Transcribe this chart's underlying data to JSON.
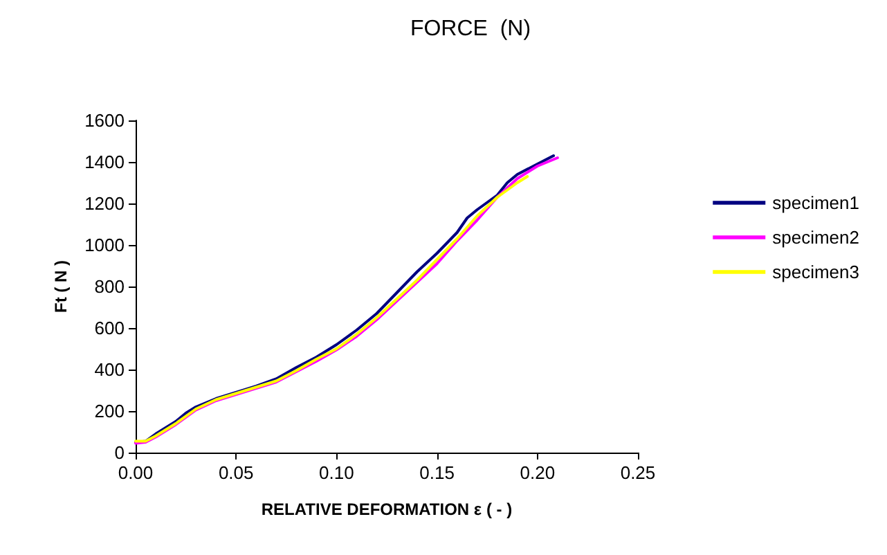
{
  "chart_data": {
    "type": "line",
    "title": "FORCE  (N)",
    "xlabel": "RELATIVE DEFORMATION ε ( - )",
    "ylabel": "Ft ( N )",
    "xlim": [
      0,
      0.25
    ],
    "xticks": [
      {
        "value": 0,
        "label": "0.00"
      },
      {
        "value": 0.05,
        "label": "0.05"
      },
      {
        "value": 0.1,
        "label": "0.10"
      },
      {
        "value": 0.15,
        "label": "0.15"
      },
      {
        "value": 0.2,
        "label": "0.20"
      },
      {
        "value": 0.25,
        "label": "0.25"
      }
    ],
    "ylim": [
      0,
      1600
    ],
    "yticks": [
      0,
      200,
      400,
      600,
      800,
      1000,
      1200,
      1400,
      1600
    ],
    "grid": false,
    "legend": "right",
    "marker": "none",
    "line_style": "solid",
    "series": [
      {
        "name": "specimen1",
        "color": "#000080",
        "x": [
          0,
          0.005,
          0.01,
          0.02,
          0.025,
          0.03,
          0.04,
          0.05,
          0.06,
          0.07,
          0.08,
          0.09,
          0.1,
          0.11,
          0.12,
          0.13,
          0.14,
          0.15,
          0.16,
          0.165,
          0.17,
          0.18,
          0.185,
          0.19,
          0.2,
          0.208
        ],
        "values": [
          50,
          55,
          90,
          150,
          190,
          220,
          260,
          290,
          320,
          355,
          410,
          460,
          520,
          590,
          670,
          770,
          870,
          960,
          1060,
          1130,
          1170,
          1240,
          1300,
          1340,
          1390,
          1430
        ]
      },
      {
        "name": "specimen2",
        "color": "#ff00ff",
        "x": [
          0,
          0.005,
          0.01,
          0.02,
          0.03,
          0.04,
          0.05,
          0.06,
          0.07,
          0.08,
          0.09,
          0.1,
          0.11,
          0.12,
          0.13,
          0.14,
          0.15,
          0.16,
          0.17,
          0.18,
          0.19,
          0.2,
          0.21
        ],
        "values": [
          45,
          50,
          75,
          135,
          205,
          250,
          280,
          310,
          340,
          390,
          440,
          495,
          560,
          640,
          730,
          820,
          910,
          1020,
          1120,
          1230,
          1320,
          1380,
          1420
        ]
      },
      {
        "name": "specimen3",
        "color": "#ffff00",
        "x": [
          0,
          0.005,
          0.01,
          0.02,
          0.03,
          0.04,
          0.05,
          0.06,
          0.07,
          0.08,
          0.09,
          0.1,
          0.11,
          0.12,
          0.13,
          0.14,
          0.15,
          0.16,
          0.17,
          0.18,
          0.19,
          0.195
        ],
        "values": [
          55,
          55,
          80,
          140,
          210,
          255,
          285,
          315,
          345,
          395,
          450,
          500,
          570,
          650,
          740,
          830,
          930,
          1030,
          1140,
          1230,
          1300,
          1330
        ]
      }
    ]
  }
}
